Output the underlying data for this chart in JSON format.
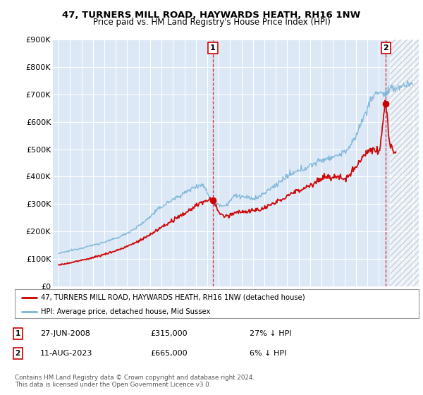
{
  "title": "47, TURNERS MILL ROAD, HAYWARDS HEATH, RH16 1NW",
  "subtitle": "Price paid vs. HM Land Registry's House Price Index (HPI)",
  "legend_line1": "47, TURNERS MILL ROAD, HAYWARDS HEATH, RH16 1NW (detached house)",
  "legend_line2": "HPI: Average price, detached house, Mid Sussex",
  "annotation1_label": "1",
  "annotation1_date": "27-JUN-2008",
  "annotation1_price": "£315,000",
  "annotation1_hpi": "27% ↓ HPI",
  "annotation2_label": "2",
  "annotation2_date": "11-AUG-2023",
  "annotation2_price": "£665,000",
  "annotation2_hpi": "6% ↓ HPI",
  "footer": "Contains HM Land Registry data © Crown copyright and database right 2024.\nThis data is licensed under the Open Government Licence v3.0.",
  "hpi_color": "#7ab4d8",
  "price_color": "#cc0000",
  "dashed_line_color": "#cc0000",
  "background_color": "#dce8f5",
  "plot_bg_color": "#dce8f5",
  "ylim": [
    0,
    900000
  ],
  "yticks": [
    0,
    100000,
    200000,
    300000,
    400000,
    500000,
    600000,
    700000,
    800000,
    900000
  ],
  "ytick_labels": [
    "£0",
    "£100K",
    "£200K",
    "£300K",
    "£400K",
    "£500K",
    "£600K",
    "£700K",
    "£800K",
    "£900K"
  ],
  "sale1_x": 2008.49,
  "sale1_y": 315000,
  "sale2_x": 2023.62,
  "sale2_y": 665000,
  "xlim_left": 1994.5,
  "xlim_right": 2026.5,
  "hatch_start": 2024.0
}
